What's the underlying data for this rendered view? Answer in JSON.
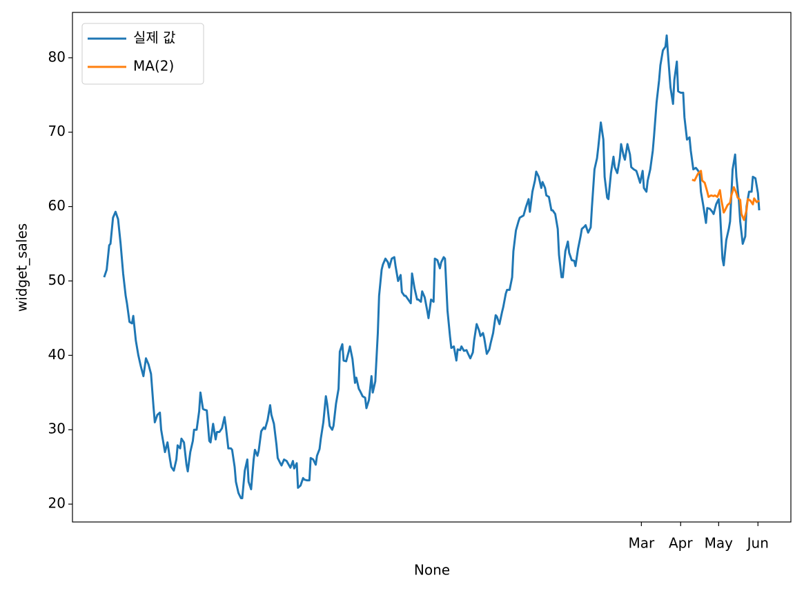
{
  "chart_data": {
    "type": "line",
    "xlabel": "None",
    "ylabel": "widget_sales",
    "xlim": [
      -23,
      544
    ],
    "xticks": [
      {
        "value": 426,
        "label": "Mar"
      },
      {
        "value": 457,
        "label": "Apr"
      },
      {
        "value": 487,
        "label": "May"
      },
      {
        "value": 518,
        "label": "Jun"
      }
    ],
    "ylim": [
      17.6,
      86.1
    ],
    "yticks": [
      20,
      30,
      40,
      50,
      60,
      70,
      80
    ],
    "grid": false,
    "legend": "upper left",
    "series": [
      {
        "name": "실제 값",
        "color": "#1f77b4",
        "x": [
          2,
          4,
          6,
          7,
          9,
          11,
          13,
          15,
          17,
          19,
          20,
          22,
          24,
          25,
          27,
          29,
          31,
          33,
          35,
          37,
          39,
          41,
          42,
          44,
          46,
          47,
          49,
          50,
          52,
          54,
          55,
          57,
          59,
          60,
          62,
          63,
          65,
          67,
          68,
          70,
          72,
          73,
          75,
          77,
          78,
          80,
          81,
          83,
          85,
          86,
          88,
          90,
          91,
          93,
          95,
          97,
          98,
          100,
          102,
          103,
          105,
          106,
          108,
          110,
          111,
          113,
          115,
          116,
          118,
          120,
          121,
          123,
          124,
          126,
          128,
          129,
          131,
          133,
          134,
          136,
          138,
          139,
          141,
          142,
          144,
          146,
          147,
          149,
          151,
          152,
          154,
          155,
          157,
          159,
          160,
          162,
          164,
          165,
          167,
          169,
          170,
          172,
          173,
          175,
          177,
          178,
          180,
          182,
          183,
          185,
          187,
          188,
          190,
          191,
          193,
          195,
          196,
          198,
          200,
          201,
          203,
          204,
          206,
          208,
          209,
          211,
          213,
          214,
          216,
          218,
          219,
          221,
          222,
          224,
          226,
          227,
          229,
          231,
          232,
          234,
          236,
          237,
          239,
          240,
          242,
          244,
          245,
          247,
          249,
          250,
          252,
          253,
          255,
          257,
          258,
          260,
          262,
          263,
          265,
          267,
          268,
          270,
          271,
          273,
          275,
          276,
          278,
          280,
          281,
          283,
          284,
          286,
          288,
          289,
          291,
          293,
          294,
          296,
          298,
          299,
          301,
          302,
          304,
          306,
          307,
          309,
          311,
          312,
          314,
          316,
          317,
          319,
          320,
          322,
          324,
          325,
          327,
          329,
          330,
          332,
          333,
          335,
          337,
          338,
          340,
          342,
          343,
          345,
          347,
          348,
          350,
          351,
          353,
          355,
          356,
          358,
          360,
          361,
          363,
          364,
          366,
          368,
          369,
          371,
          373,
          374,
          376,
          378,
          379,
          381,
          382,
          384,
          386,
          387,
          389,
          391,
          392,
          394,
          396,
          397,
          399,
          400,
          402,
          404,
          405,
          407,
          409,
          410,
          412,
          413,
          415,
          417,
          418,
          420,
          422,
          423,
          425,
          427,
          428,
          430,
          431,
          433,
          435,
          436,
          438,
          440,
          441,
          443,
          445,
          446,
          447,
          449,
          451,
          452,
          454,
          455,
          457,
          459,
          460,
          462,
          464,
          465,
          467,
          469,
          470,
          472,
          473,
          475,
          477,
          478,
          480,
          482,
          483,
          485,
          487,
          488,
          490,
          491,
          493,
          495,
          496,
          498,
          500,
          501,
          503,
          504,
          506,
          508,
          509,
          511,
          513,
          514,
          516,
          518,
          519
        ],
        "values": [
          50.5,
          51.5,
          54.8,
          55,
          58.5,
          59.3,
          58.3,
          55,
          51,
          48,
          47,
          44.5,
          44.3,
          45.3,
          42,
          40,
          38.5,
          37.2,
          39.6,
          38.8,
          37.5,
          33,
          31,
          32,
          32.3,
          30,
          28,
          27,
          28.3,
          26,
          25,
          24.5,
          26,
          27.9,
          27.5,
          28.8,
          28.3,
          25.3,
          24.4,
          27,
          28.5,
          30,
          30,
          32.5,
          35,
          32.8,
          32.7,
          32.6,
          28.5,
          28.3,
          30.8,
          28.7,
          29.7,
          29.7,
          30.2,
          31.7,
          30.5,
          27.5,
          27.5,
          27.3,
          25,
          23,
          21.5,
          20.8,
          20.8,
          24.5,
          26,
          23,
          22,
          26,
          27.3,
          26.5,
          27.2,
          29.8,
          30.3,
          30.1,
          31.3,
          33.3,
          32,
          30.8,
          28,
          26.2,
          25.5,
          25.2,
          26,
          25.8,
          25.5,
          24.9,
          25.8,
          24.8,
          25.5,
          22.2,
          22.5,
          23.5,
          23.3,
          23.2,
          23.2,
          26.2,
          26,
          25.3,
          26.5,
          27.4,
          28.8,
          31,
          34.5,
          33.5,
          30.5,
          30,
          30.5,
          33.5,
          35.5,
          40.5,
          41.5,
          39.3,
          39.2,
          40.5,
          41.2,
          39.5,
          36.3,
          37,
          35.5,
          35.2,
          34.5,
          34.3,
          32.9,
          34,
          37.2,
          35,
          36.5,
          43,
          48,
          51.5,
          52.2,
          53,
          52.5,
          51.8,
          53,
          53.2,
          52,
          50,
          50.8,
          48.5,
          48,
          48,
          47.5,
          47,
          51,
          49,
          47.5,
          47.5,
          47.2,
          48.6,
          47.8,
          46,
          45,
          47.5,
          47.2,
          53,
          52.8,
          51.7,
          52.5,
          53.2,
          53,
          46,
          42.5,
          41,
          41.2,
          39.3,
          40.8,
          40.7,
          41.2,
          40.6,
          40.7,
          40.3,
          39.6,
          40.4,
          42,
          44.2,
          43.3,
          42.6,
          43,
          42.3,
          40.2,
          40.8,
          41.6,
          43,
          45.4,
          45.2,
          44.2,
          45.8,
          46.5,
          48.3,
          48.8,
          48.8,
          50.5,
          54,
          56.8,
          58,
          58.5,
          58.7,
          58.8,
          60,
          61,
          59.3,
          62,
          63.5,
          64.7,
          64,
          62.5,
          63.3,
          62.5,
          61.5,
          61.3,
          59.5,
          59.5,
          59,
          57,
          53.5,
          50.5,
          50.5,
          54,
          55.3,
          53.8,
          52.8,
          52.7,
          52,
          54.3,
          56,
          57,
          57.3,
          57.5,
          56.5,
          57.2,
          60,
          65,
          66.5,
          68,
          71.3,
          69,
          64,
          61.2,
          61,
          64.5,
          66.7,
          65.3,
          64.5,
          66.5,
          68.4,
          66.8,
          66.3,
          68.4,
          67,
          65.3,
          65,
          64.8,
          64.3,
          63.2,
          64.8,
          62.5,
          62,
          63.5,
          65,
          67.5,
          69.5,
          74,
          77,
          79,
          81,
          81.5,
          83,
          80.5,
          76,
          73.8,
          77,
          79.5,
          75.5,
          75.3,
          75.3,
          72,
          69,
          69.3,
          67.5,
          65,
          65.2,
          65,
          64.5,
          62,
          60,
          57.8,
          59.8,
          59.7,
          59.3,
          59,
          60.3,
          61,
          59.5,
          53,
          52.1,
          55.5,
          57,
          58,
          65,
          67,
          64,
          60.7,
          58,
          55,
          56,
          60,
          62,
          62,
          64,
          63.8,
          61.8,
          59.5
        ]
      },
      {
        "name": "MA(2)",
        "color": "#ff7f0e",
        "x": [
          466,
          468,
          470,
          471,
          473,
          474,
          476,
          478,
          479,
          481,
          483,
          484,
          486,
          488,
          489,
          491,
          492,
          494,
          496,
          497,
          499,
          501,
          502,
          504,
          505,
          507,
          509,
          510,
          512,
          514,
          515,
          517,
          519
        ],
        "values": [
          63.6,
          63.5,
          64.2,
          64.5,
          64.8,
          63.5,
          63.2,
          62,
          61.3,
          61.5,
          61.4,
          61.5,
          61.3,
          62.2,
          61,
          59.2,
          59.5,
          60.2,
          60.5,
          61.5,
          62.6,
          61.8,
          61.2,
          60.9,
          59,
          58.2,
          59.5,
          61,
          60.8,
          60.3,
          61.1,
          60.6,
          60.8
        ]
      }
    ]
  }
}
